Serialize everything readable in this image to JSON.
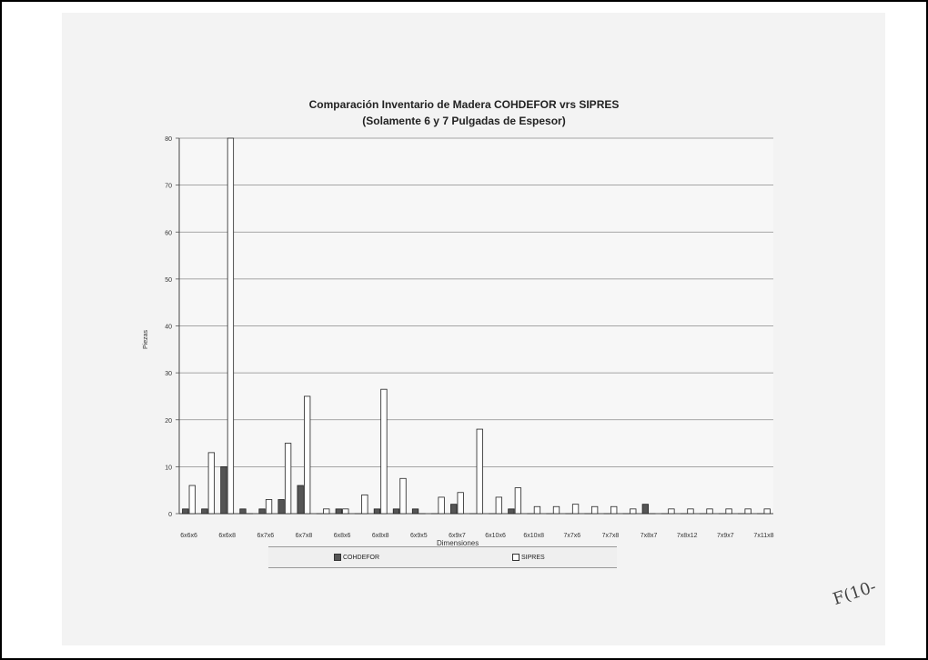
{
  "chart_data": {
    "type": "bar",
    "title": "Comparación  Inventario de Madera COHDEFOR vrs SIPRES",
    "subtitle": "(Solamente 6 y 7 Pulgadas de Espesor)",
    "xlabel": "Dimensiones",
    "ylabel": "Piezas",
    "ylim": [
      0,
      80
    ],
    "yticks": [
      "0",
      "10",
      "20",
      "30",
      "40",
      "50",
      "60",
      "70",
      "80"
    ],
    "grid": true,
    "legend_position": "bottom",
    "categories": [
      "6x6x6",
      "",
      "6x6x8",
      "",
      "6x7x6",
      "",
      "6x7x8",
      "",
      "6x8x6",
      "",
      "6x8x8",
      "",
      "6x9x5",
      "",
      "6x9x7",
      "",
      "6x10x6",
      "",
      "6x10x8",
      "",
      "7x7x6",
      "",
      "7x7x8",
      "",
      "7x8x7",
      "",
      "7x8x12",
      "",
      "7x9x7",
      "",
      "7x11x8"
    ],
    "series": [
      {
        "name": "COHDEFOR",
        "color": "#555555",
        "values": [
          1,
          1,
          10,
          1,
          1,
          3,
          6,
          0,
          1,
          0,
          1,
          1,
          1,
          0,
          2,
          0,
          0,
          1,
          0,
          0,
          0,
          0,
          0,
          0,
          2,
          0,
          0,
          0,
          0,
          0,
          0
        ]
      },
      {
        "name": "SIPRES",
        "color": "#ffffff",
        "values": [
          6,
          13,
          80,
          0,
          3,
          15,
          25,
          1,
          1,
          4,
          26.5,
          7.5,
          0,
          3.5,
          4.5,
          18,
          3.5,
          5.5,
          1.5,
          1.5,
          2,
          1.5,
          1.5,
          1,
          0,
          1,
          1,
          1,
          1,
          1,
          1
        ]
      }
    ],
    "annotations": [
      "F(10-"
    ]
  }
}
